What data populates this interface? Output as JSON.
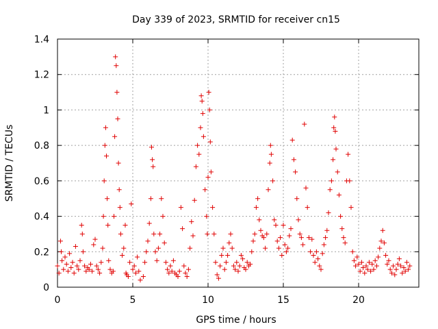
{
  "chart_data": {
    "type": "scatter",
    "title": "Day 339 of 2023, SRMTID for receiver cn15",
    "xlabel": "GPS time / hours",
    "ylabel": "SRMTID / TECUs",
    "xlim": [
      0,
      24
    ],
    "ylim": [
      0,
      1.4
    ],
    "xticks": [
      0,
      5,
      10,
      15,
      20
    ],
    "yticks": [
      0,
      0.2,
      0.4,
      0.6,
      0.8,
      1,
      1.2,
      1.4
    ],
    "ytick_labels": [
      "0",
      "0.2",
      "0.4",
      "0.6",
      "0.8",
      "1",
      "1.2",
      "1.4"
    ],
    "grid": true,
    "marker": "+",
    "series": [
      {
        "name": "SRMTID",
        "color": "#e00000",
        "points": [
          [
            0.0,
            0.12
          ],
          [
            0.1,
            0.08
          ],
          [
            0.2,
            0.26
          ],
          [
            0.25,
            0.2
          ],
          [
            0.3,
            0.15
          ],
          [
            0.4,
            0.1
          ],
          [
            0.5,
            0.17
          ],
          [
            0.6,
            0.13
          ],
          [
            0.7,
            0.09
          ],
          [
            0.8,
            0.19
          ],
          [
            0.9,
            0.11
          ],
          [
            1.0,
            0.14
          ],
          [
            1.1,
            0.08
          ],
          [
            1.2,
            0.23
          ],
          [
            1.3,
            0.12
          ],
          [
            1.4,
            0.1
          ],
          [
            1.5,
            0.15
          ],
          [
            1.6,
            0.35
          ],
          [
            1.65,
            0.3
          ],
          [
            1.7,
            0.2
          ],
          [
            1.8,
            0.12
          ],
          [
            1.9,
            0.09
          ],
          [
            2.0,
            0.11
          ],
          [
            2.1,
            0.1
          ],
          [
            2.2,
            0.13
          ],
          [
            2.3,
            0.09
          ],
          [
            2.4,
            0.24
          ],
          [
            2.5,
            0.27
          ],
          [
            2.6,
            0.12
          ],
          [
            2.7,
            0.1
          ],
          [
            2.8,
            0.08
          ],
          [
            2.9,
            0.14
          ],
          [
            3.0,
            0.22
          ],
          [
            3.05,
            0.4
          ],
          [
            3.1,
            0.6
          ],
          [
            3.15,
            0.8
          ],
          [
            3.2,
            0.9
          ],
          [
            3.25,
            0.74
          ],
          [
            3.3,
            0.5
          ],
          [
            3.35,
            0.35
          ],
          [
            3.4,
            0.15
          ],
          [
            3.5,
            0.1
          ],
          [
            3.6,
            0.08
          ],
          [
            3.7,
            0.09
          ],
          [
            3.75,
            0.4
          ],
          [
            3.8,
            0.85
          ],
          [
            3.85,
            1.3
          ],
          [
            3.9,
            1.25
          ],
          [
            3.95,
            1.1
          ],
          [
            4.0,
            0.95
          ],
          [
            4.05,
            0.7
          ],
          [
            4.1,
            0.55
          ],
          [
            4.15,
            0.45
          ],
          [
            4.2,
            0.3
          ],
          [
            4.3,
            0.18
          ],
          [
            4.4,
            0.22
          ],
          [
            4.5,
            0.35
          ],
          [
            4.55,
            0.08
          ],
          [
            4.6,
            0.07
          ],
          [
            4.7,
            0.06
          ],
          [
            4.8,
            0.14
          ],
          [
            4.9,
            0.47
          ],
          [
            5.0,
            0.1
          ],
          [
            5.1,
            0.12
          ],
          [
            5.2,
            0.08
          ],
          [
            5.3,
            0.17
          ],
          [
            5.4,
            0.09
          ],
          [
            5.5,
            0.04
          ],
          [
            5.7,
            0.06
          ],
          [
            5.8,
            0.14
          ],
          [
            5.9,
            0.2
          ],
          [
            6.0,
            0.26
          ],
          [
            6.1,
            0.36
          ],
          [
            6.2,
            0.5
          ],
          [
            6.25,
            0.79
          ],
          [
            6.3,
            0.72
          ],
          [
            6.35,
            0.68
          ],
          [
            6.4,
            0.3
          ],
          [
            6.5,
            0.2
          ],
          [
            6.6,
            0.15
          ],
          [
            6.7,
            0.22
          ],
          [
            6.8,
            0.3
          ],
          [
            6.9,
            0.5
          ],
          [
            7.0,
            0.4
          ],
          [
            7.1,
            0.25
          ],
          [
            7.2,
            0.14
          ],
          [
            7.3,
            0.1
          ],
          [
            7.4,
            0.08
          ],
          [
            7.5,
            0.12
          ],
          [
            7.6,
            0.09
          ],
          [
            7.7,
            0.15
          ],
          [
            7.8,
            0.08
          ],
          [
            7.9,
            0.07
          ],
          [
            8.0,
            0.06
          ],
          [
            8.1,
            0.09
          ],
          [
            8.2,
            0.45
          ],
          [
            8.3,
            0.33
          ],
          [
            8.4,
            0.12
          ],
          [
            8.5,
            0.08
          ],
          [
            8.6,
            0.06
          ],
          [
            8.7,
            0.1
          ],
          [
            8.8,
            0.22
          ],
          [
            8.9,
            0.37
          ],
          [
            9.0,
            0.29
          ],
          [
            9.1,
            0.49
          ],
          [
            9.2,
            0.68
          ],
          [
            9.3,
            0.8
          ],
          [
            9.4,
            0.75
          ],
          [
            9.5,
            0.9
          ],
          [
            9.55,
            1.08
          ],
          [
            9.6,
            1.05
          ],
          [
            9.65,
            0.98
          ],
          [
            9.7,
            0.85
          ],
          [
            9.8,
            0.55
          ],
          [
            9.9,
            0.4
          ],
          [
            9.95,
            0.3
          ],
          [
            10.0,
            0.62
          ],
          [
            10.05,
            1.1
          ],
          [
            10.1,
            1.0
          ],
          [
            10.15,
            0.82
          ],
          [
            10.2,
            0.65
          ],
          [
            10.3,
            0.45
          ],
          [
            10.4,
            0.3
          ],
          [
            10.5,
            0.14
          ],
          [
            10.6,
            0.07
          ],
          [
            10.7,
            0.05
          ],
          [
            10.8,
            0.12
          ],
          [
            10.9,
            0.18
          ],
          [
            11.0,
            0.22
          ],
          [
            11.1,
            0.1
          ],
          [
            11.2,
            0.14
          ],
          [
            11.3,
            0.18
          ],
          [
            11.4,
            0.25
          ],
          [
            11.5,
            0.3
          ],
          [
            11.6,
            0.22
          ],
          [
            11.7,
            0.12
          ],
          [
            11.8,
            0.1
          ],
          [
            11.9,
            0.14
          ],
          [
            12.0,
            0.09
          ],
          [
            12.1,
            0.12
          ],
          [
            12.2,
            0.18
          ],
          [
            12.3,
            0.16
          ],
          [
            12.4,
            0.11
          ],
          [
            12.5,
            0.1
          ],
          [
            12.6,
            0.14
          ],
          [
            12.7,
            0.12
          ],
          [
            12.8,
            0.13
          ],
          [
            12.9,
            0.2
          ],
          [
            13.0,
            0.26
          ],
          [
            13.1,
            0.3
          ],
          [
            13.2,
            0.45
          ],
          [
            13.3,
            0.5
          ],
          [
            13.4,
            0.38
          ],
          [
            13.5,
            0.32
          ],
          [
            13.6,
            0.29
          ],
          [
            13.7,
            0.28
          ],
          [
            13.8,
            0.22
          ],
          [
            13.9,
            0.3
          ],
          [
            14.0,
            0.55
          ],
          [
            14.1,
            0.7
          ],
          [
            14.15,
            0.8
          ],
          [
            14.2,
            0.75
          ],
          [
            14.3,
            0.6
          ],
          [
            14.4,
            0.38
          ],
          [
            14.5,
            0.35
          ],
          [
            14.6,
            0.26
          ],
          [
            14.7,
            0.22
          ],
          [
            14.8,
            0.28
          ],
          [
            14.9,
            0.18
          ],
          [
            15.0,
            0.35
          ],
          [
            15.1,
            0.24
          ],
          [
            15.2,
            0.2
          ],
          [
            15.3,
            0.22
          ],
          [
            15.4,
            0.29
          ],
          [
            15.5,
            0.33
          ],
          [
            15.6,
            0.83
          ],
          [
            15.7,
            0.72
          ],
          [
            15.8,
            0.65
          ],
          [
            15.9,
            0.5
          ],
          [
            16.0,
            0.38
          ],
          [
            16.1,
            0.3
          ],
          [
            16.2,
            0.28
          ],
          [
            16.3,
            0.24
          ],
          [
            16.4,
            0.92
          ],
          [
            16.5,
            0.56
          ],
          [
            16.6,
            0.45
          ],
          [
            16.7,
            0.28
          ],
          [
            16.8,
            0.2
          ],
          [
            16.9,
            0.27
          ],
          [
            17.0,
            0.18
          ],
          [
            17.1,
            0.14
          ],
          [
            17.2,
            0.2
          ],
          [
            17.3,
            0.16
          ],
          [
            17.4,
            0.12
          ],
          [
            17.5,
            0.1
          ],
          [
            17.6,
            0.19
          ],
          [
            17.7,
            0.24
          ],
          [
            17.8,
            0.28
          ],
          [
            17.9,
            0.32
          ],
          [
            18.0,
            0.42
          ],
          [
            18.1,
            0.55
          ],
          [
            18.2,
            0.6
          ],
          [
            18.3,
            0.72
          ],
          [
            18.35,
            0.9
          ],
          [
            18.4,
            0.96
          ],
          [
            18.45,
            0.88
          ],
          [
            18.5,
            0.78
          ],
          [
            18.6,
            0.65
          ],
          [
            18.7,
            0.52
          ],
          [
            18.8,
            0.4
          ],
          [
            18.9,
            0.33
          ],
          [
            19.0,
            0.28
          ],
          [
            19.1,
            0.25
          ],
          [
            19.2,
            0.6
          ],
          [
            19.3,
            0.75
          ],
          [
            19.4,
            0.6
          ],
          [
            19.5,
            0.45
          ],
          [
            19.6,
            0.2
          ],
          [
            19.7,
            0.15
          ],
          [
            19.8,
            0.12
          ],
          [
            19.9,
            0.17
          ],
          [
            20.0,
            0.13
          ],
          [
            20.1,
            0.09
          ],
          [
            20.2,
            0.14
          ],
          [
            20.3,
            0.11
          ],
          [
            20.4,
            0.08
          ],
          [
            20.5,
            0.12
          ],
          [
            20.6,
            0.1
          ],
          [
            20.7,
            0.14
          ],
          [
            20.8,
            0.09
          ],
          [
            20.9,
            0.13
          ],
          [
            21.0,
            0.1
          ],
          [
            21.1,
            0.15
          ],
          [
            21.2,
            0.12
          ],
          [
            21.3,
            0.17
          ],
          [
            21.4,
            0.22
          ],
          [
            21.5,
            0.26
          ],
          [
            21.6,
            0.32
          ],
          [
            21.7,
            0.25
          ],
          [
            21.8,
            0.18
          ],
          [
            21.9,
            0.13
          ],
          [
            22.0,
            0.15
          ],
          [
            22.1,
            0.1
          ],
          [
            22.2,
            0.08
          ],
          [
            22.3,
            0.12
          ],
          [
            22.4,
            0.07
          ],
          [
            22.5,
            0.1
          ],
          [
            22.6,
            0.13
          ],
          [
            22.7,
            0.16
          ],
          [
            22.8,
            0.12
          ],
          [
            22.9,
            0.08
          ],
          [
            23.0,
            0.11
          ],
          [
            23.1,
            0.09
          ],
          [
            23.2,
            0.14
          ],
          [
            23.3,
            0.1
          ],
          [
            23.4,
            0.12
          ]
        ]
      }
    ]
  }
}
